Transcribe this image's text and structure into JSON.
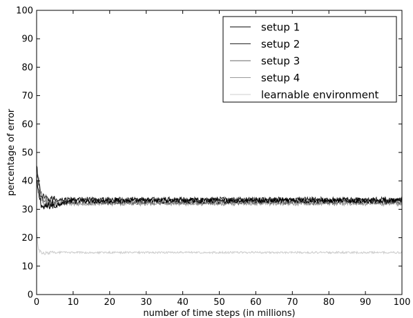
{
  "chart_data": {
    "type": "line",
    "title": "",
    "xlabel": "number of time steps (in millions)",
    "ylabel": "percentage of error",
    "xlim": [
      0,
      100
    ],
    "ylim": [
      0,
      100
    ],
    "xticks": [
      0,
      10,
      20,
      30,
      40,
      50,
      60,
      70,
      80,
      90,
      100
    ],
    "yticks": [
      0,
      10,
      20,
      30,
      40,
      50,
      60,
      70,
      80,
      90,
      100
    ],
    "grid": false,
    "legend_position": "top-right",
    "series": [
      {
        "name": "setup 1",
        "color": "#000000",
        "x": [
          0,
          0.5,
          1,
          1.5,
          2,
          3,
          4,
          5,
          6,
          10,
          20,
          30,
          40,
          50,
          60,
          70,
          80,
          90,
          100
        ],
        "y": [
          40,
          36,
          33,
          31,
          30.5,
          31,
          31.5,
          31,
          32,
          33,
          33,
          33,
          33,
          33,
          33,
          33,
          33,
          33,
          33
        ],
        "noise": 0.9
      },
      {
        "name": "setup 2",
        "color": "#222222",
        "x": [
          0,
          0.5,
          1,
          2,
          3,
          5,
          10,
          20,
          30,
          40,
          50,
          60,
          70,
          80,
          90,
          100
        ],
        "y": [
          45,
          40,
          35,
          34,
          33.5,
          33.5,
          33.5,
          33.5,
          33.5,
          33.5,
          33.5,
          33.5,
          33.5,
          33.5,
          33.5,
          33.5
        ],
        "noise": 0.8
      },
      {
        "name": "setup 3",
        "color": "#666666",
        "x": [
          0,
          0.5,
          1,
          2,
          3,
          5,
          10,
          20,
          30,
          40,
          50,
          60,
          70,
          80,
          90,
          100
        ],
        "y": [
          40,
          42,
          36,
          33,
          32.5,
          32.5,
          32.5,
          32.5,
          32.5,
          32.5,
          32.5,
          32.5,
          32.5,
          32.5,
          32.5,
          32.5
        ],
        "noise": 0.8
      },
      {
        "name": "setup 4",
        "color": "#999999",
        "x": [
          0,
          0.5,
          1,
          2,
          3,
          5,
          10,
          20,
          30,
          40,
          50,
          60,
          70,
          80,
          90,
          100
        ],
        "y": [
          38,
          36,
          34,
          32.5,
          32,
          32,
          32,
          32,
          32,
          32,
          32,
          32,
          32,
          32,
          32,
          32
        ],
        "noise": 0.7
      },
      {
        "name": "learnable environment",
        "color": "#cccccc",
        "x": [
          0,
          0.3,
          0.6,
          1,
          1.5,
          2,
          3,
          5,
          10,
          20,
          30,
          40,
          50,
          60,
          70,
          80,
          90,
          100
        ],
        "y": [
          22,
          18,
          16,
          15,
          14.5,
          14.5,
          14.7,
          14.8,
          14.8,
          14.8,
          14.8,
          14.8,
          14.8,
          14.8,
          14.8,
          14.8,
          14.8,
          14.8
        ],
        "noise": 0.35
      }
    ]
  }
}
